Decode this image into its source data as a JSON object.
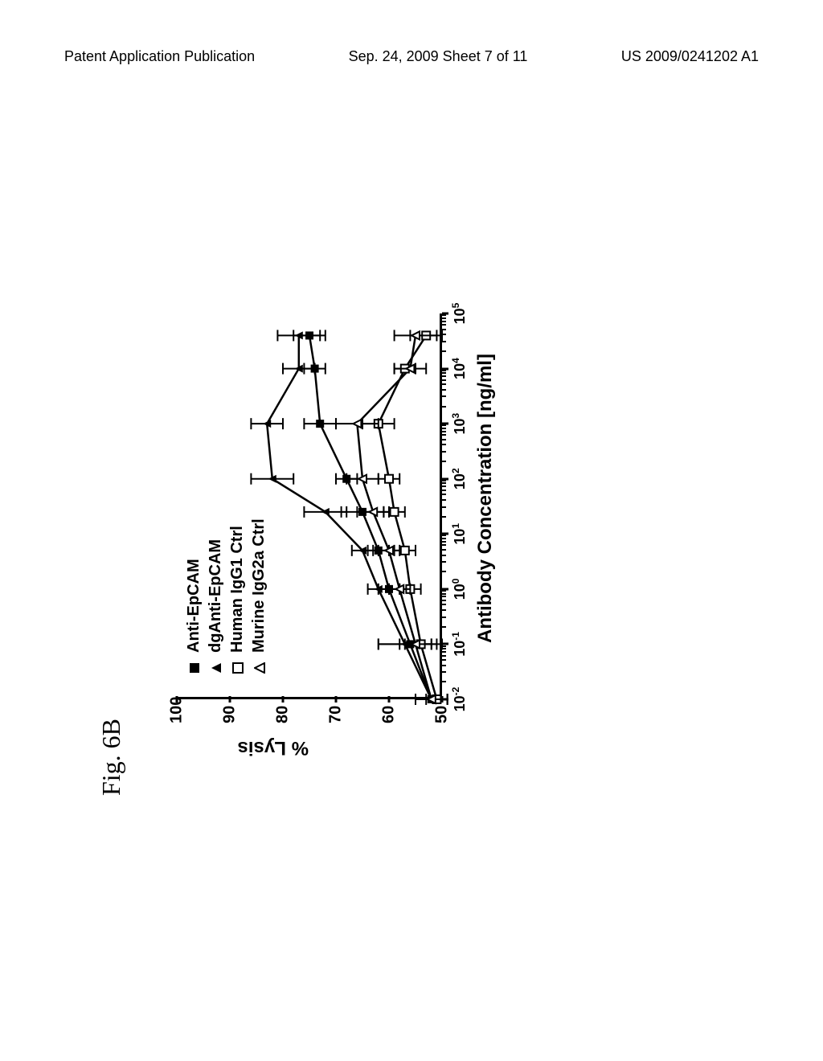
{
  "header": {
    "left": "Patent Application Publication",
    "center": "Sep. 24, 2009  Sheet 7 of 11",
    "right": "US 2009/0241202 A1"
  },
  "figure": {
    "label": "Fig. 6B",
    "type": "line",
    "y_axis": {
      "label": "% Lysis",
      "min": 50,
      "max": 100,
      "ticks": [
        50,
        60,
        70,
        80,
        90,
        100
      ]
    },
    "x_axis": {
      "label": "Antibody Concentration [ng/ml]",
      "scale": "log",
      "min_exp": -2,
      "max_exp": 5,
      "tick_exps": [
        -2,
        -1,
        0,
        1,
        2,
        3,
        4,
        5
      ]
    },
    "colors": {
      "line": "#000000",
      "background": "#ffffff",
      "axis": "#000000"
    },
    "legend": [
      {
        "marker": "filled-square",
        "label": "Anti-EpCAM"
      },
      {
        "marker": "filled-triangle",
        "label": "dgAnti-EpCAM"
      },
      {
        "marker": "open-square",
        "label": "Human IgG1 Ctrl"
      },
      {
        "marker": "open-triangle",
        "label": "Murine IgG2a Ctrl"
      }
    ],
    "series": [
      {
        "name": "Anti-EpCAM",
        "marker": "filled-square",
        "points": [
          {
            "x_exp": -2,
            "y": 52,
            "err": 3
          },
          {
            "x_exp": -1,
            "y": 56,
            "err": 6
          },
          {
            "x_exp": 0,
            "y": 60,
            "err": 2
          },
          {
            "x_exp": 0.7,
            "y": 62,
            "err": 2
          },
          {
            "x_exp": 1.4,
            "y": 65,
            "err": 4
          },
          {
            "x_exp": 2,
            "y": 68,
            "err": 2
          },
          {
            "x_exp": 3,
            "y": 73,
            "err": 3
          },
          {
            "x_exp": 4,
            "y": 74,
            "err": 2
          },
          {
            "x_exp": 4.6,
            "y": 75,
            "err": 3
          }
        ]
      },
      {
        "name": "dgAnti-EpCAM",
        "marker": "filled-triangle",
        "points": [
          {
            "x_exp": -2,
            "y": 52,
            "err": 3
          },
          {
            "x_exp": -1,
            "y": 57,
            "err": 5
          },
          {
            "x_exp": 0,
            "y": 62,
            "err": 2
          },
          {
            "x_exp": 0.7,
            "y": 65,
            "err": 2
          },
          {
            "x_exp": 1.4,
            "y": 72,
            "err": 4
          },
          {
            "x_exp": 2,
            "y": 82,
            "err": 4
          },
          {
            "x_exp": 3,
            "y": 83,
            "err": 3
          },
          {
            "x_exp": 4,
            "y": 77,
            "err": 3
          },
          {
            "x_exp": 4.6,
            "y": 77,
            "err": 4
          }
        ]
      },
      {
        "name": "Human IgG1 Ctrl",
        "marker": "open-square",
        "points": [
          {
            "x_exp": -2,
            "y": 51,
            "err": 2
          },
          {
            "x_exp": -1,
            "y": 54,
            "err": 3
          },
          {
            "x_exp": 0,
            "y": 56,
            "err": 2
          },
          {
            "x_exp": 0.7,
            "y": 57,
            "err": 2
          },
          {
            "x_exp": 1.4,
            "y": 59,
            "err": 2
          },
          {
            "x_exp": 2,
            "y": 60,
            "err": 2
          },
          {
            "x_exp": 3,
            "y": 62,
            "err": 3
          },
          {
            "x_exp": 4,
            "y": 57,
            "err": 2
          },
          {
            "x_exp": 4.6,
            "y": 53,
            "err": 3
          }
        ]
      },
      {
        "name": "Murine IgG2a Ctrl",
        "marker": "open-triangle",
        "points": [
          {
            "x_exp": -2,
            "y": 52,
            "err": 3
          },
          {
            "x_exp": -1,
            "y": 55,
            "err": 3
          },
          {
            "x_exp": 0,
            "y": 58,
            "err": 2
          },
          {
            "x_exp": 0.7,
            "y": 60,
            "err": 2
          },
          {
            "x_exp": 1.4,
            "y": 63,
            "err": 3
          },
          {
            "x_exp": 2,
            "y": 65,
            "err": 3
          },
          {
            "x_exp": 3,
            "y": 66,
            "err": 4
          },
          {
            "x_exp": 4,
            "y": 56,
            "err": 3
          },
          {
            "x_exp": 4.6,
            "y": 55,
            "err": 4
          }
        ]
      }
    ],
    "line_width": 2.5,
    "marker_size": 10,
    "err_cap": 7
  }
}
